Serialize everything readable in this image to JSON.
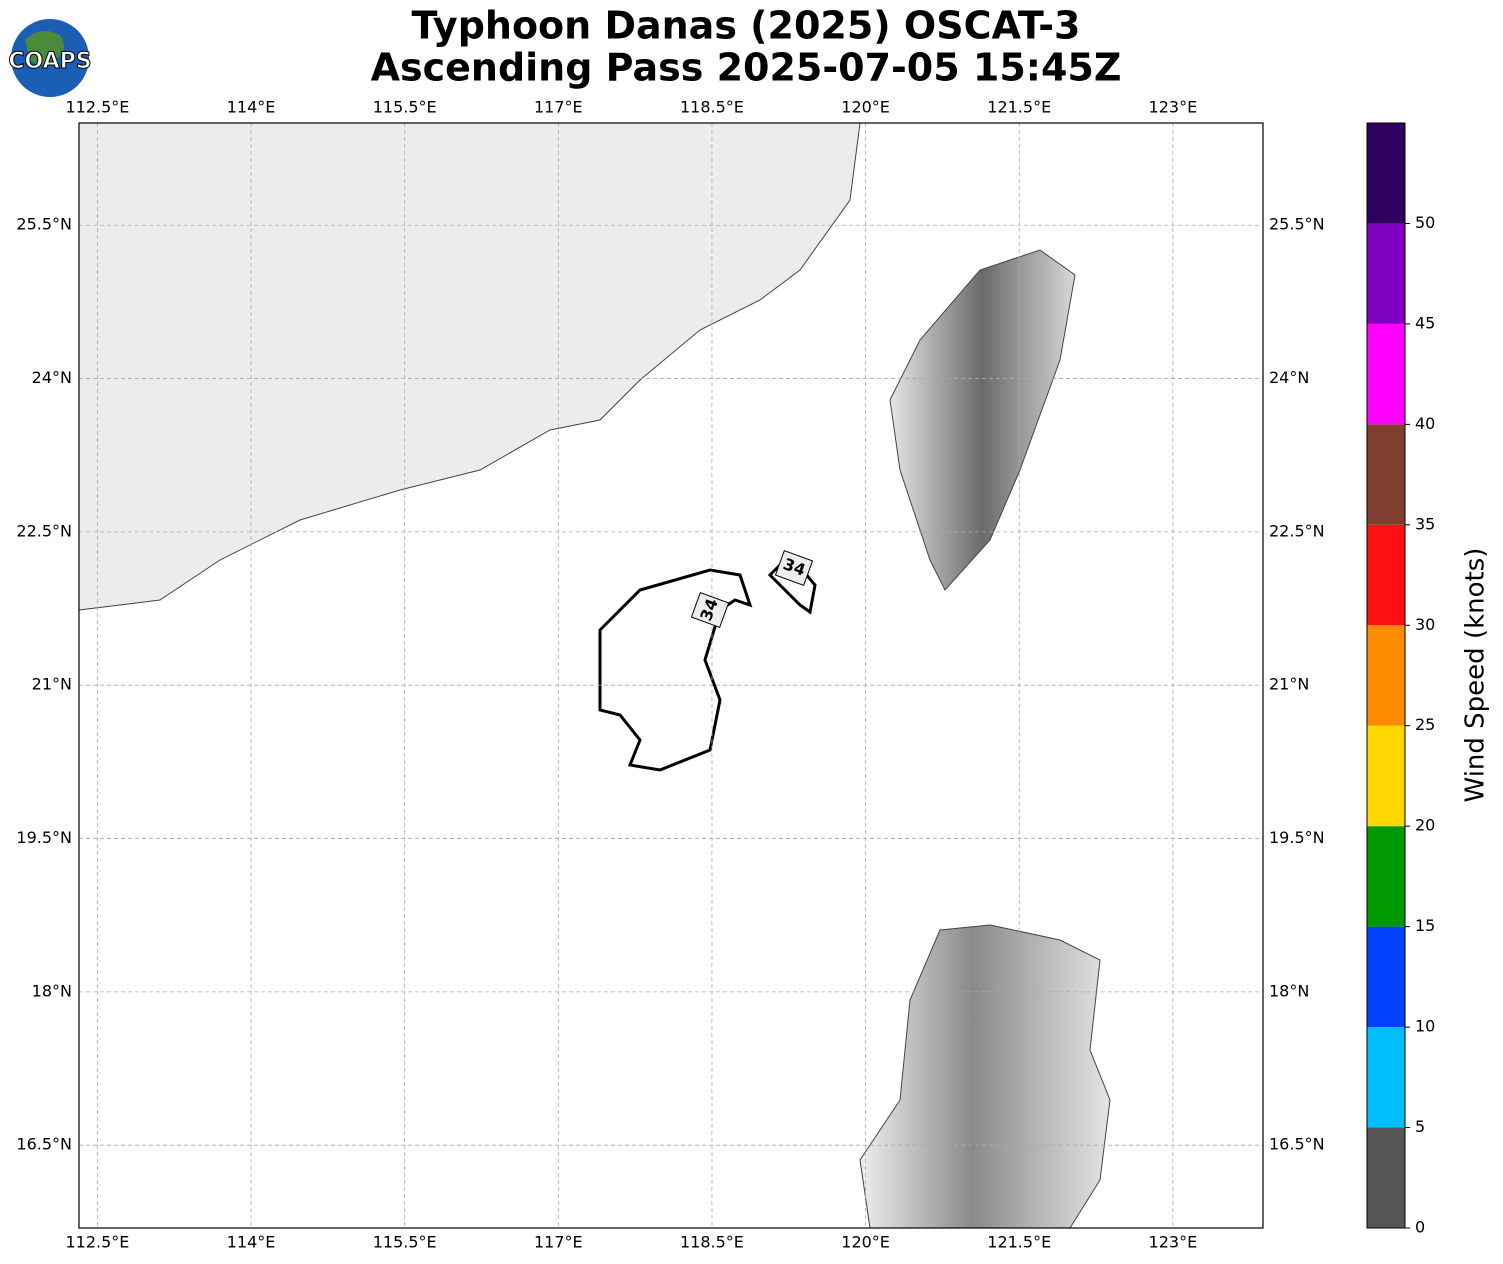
{
  "header": {
    "title": "Typhoon Danas (2025) OSCAT-3",
    "subtitle": "Ascending Pass 2025-07-05 15:45Z",
    "logo": "COAPS"
  },
  "map": {
    "xlim": [
      112.32,
      123.88
    ],
    "ylim": [
      15.69,
      26.5
    ],
    "xticks": [
      {
        "value": 112.5,
        "label": "112.5°E"
      },
      {
        "value": 114,
        "label": "114°E"
      },
      {
        "value": 115.5,
        "label": "115.5°E"
      },
      {
        "value": 117,
        "label": "117°E"
      },
      {
        "value": 118.5,
        "label": "118.5°E"
      },
      {
        "value": 120,
        "label": "120°E"
      },
      {
        "value": 121.5,
        "label": "121.5°E"
      },
      {
        "value": 123,
        "label": "123°E"
      }
    ],
    "yticks": [
      {
        "value": 16.5,
        "label": "16.5°N"
      },
      {
        "value": 18,
        "label": "18°N"
      },
      {
        "value": 19.5,
        "label": "19.5°N"
      },
      {
        "value": 21,
        "label": "21°N"
      },
      {
        "value": 22.5,
        "label": "22.5°N"
      },
      {
        "value": 24,
        "label": "24°N"
      },
      {
        "value": 25.5,
        "label": "25.5°N"
      }
    ],
    "grid": true,
    "contour_labels": [
      "34",
      "34"
    ]
  },
  "colorbar": {
    "label": "Wind Speed (knots)",
    "lim": [
      0,
      55
    ],
    "bounds": [
      0,
      5,
      10,
      15,
      20,
      25,
      30,
      35,
      40,
      45,
      50,
      55
    ],
    "colors": [
      "#555555",
      "#00bfff",
      "#0040ff",
      "#009900",
      "#ffd700",
      "#ff8c00",
      "#ff1010",
      "#7f3f2f",
      "#ff00ff",
      "#8000bf",
      "#300060"
    ],
    "ticks": [
      0,
      5,
      10,
      15,
      20,
      25,
      30,
      35,
      40,
      45,
      50
    ]
  }
}
